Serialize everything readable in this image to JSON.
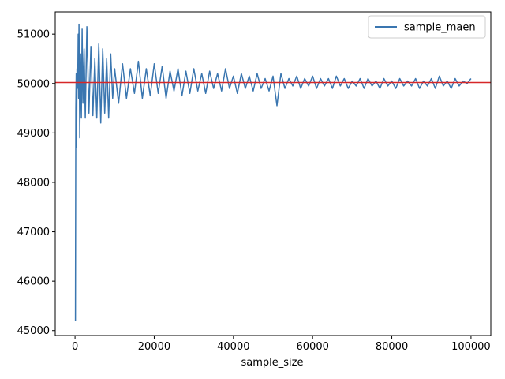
{
  "chart_data": {
    "type": "line",
    "title": "",
    "xlabel": "sample_size",
    "ylabel": "",
    "xlim": [
      -5000,
      105000
    ],
    "ylim": [
      44900,
      51450
    ],
    "xticks": [
      0,
      20000,
      40000,
      60000,
      80000,
      100000
    ],
    "xtick_labels": [
      "0",
      "20000",
      "40000",
      "60000",
      "80000",
      "100000"
    ],
    "yticks": [
      45000,
      46000,
      47000,
      48000,
      49000,
      50000,
      51000
    ],
    "ytick_labels": [
      "45000",
      "46000",
      "47000",
      "48000",
      "49000",
      "50000",
      "51000"
    ],
    "grid": false,
    "legend": {
      "location": "upper right",
      "entries": [
        "sample_maen"
      ]
    },
    "series": [
      {
        "name": "sample_maen",
        "color": "#3a76b0",
        "x": [
          100,
          200,
          300,
          400,
          500,
          600,
          700,
          800,
          900,
          1000,
          1200,
          1400,
          1600,
          1800,
          2000,
          2300,
          2600,
          3000,
          3500,
          4000,
          4500,
          5000,
          5500,
          6000,
          6500,
          7000,
          7500,
          8000,
          8500,
          9000,
          9500,
          10000,
          11000,
          12000,
          13000,
          14000,
          15000,
          16000,
          17000,
          18000,
          19000,
          20000,
          21000,
          22000,
          23000,
          24000,
          25000,
          26000,
          27000,
          28000,
          29000,
          30000,
          31000,
          32000,
          33000,
          34000,
          35000,
          36000,
          37000,
          38000,
          39000,
          40000,
          41000,
          42000,
          43000,
          44000,
          45000,
          46000,
          47000,
          48000,
          49000,
          50000,
          51000,
          52000,
          53000,
          54000,
          55000,
          56000,
          57000,
          58000,
          59000,
          60000,
          61000,
          62000,
          63000,
          64000,
          65000,
          66000,
          67000,
          68000,
          69000,
          70000,
          71000,
          72000,
          73000,
          74000,
          75000,
          76000,
          77000,
          78000,
          79000,
          80000,
          81000,
          82000,
          83000,
          84000,
          85000,
          86000,
          87000,
          88000,
          89000,
          90000,
          91000,
          92000,
          93000,
          94000,
          95000,
          96000,
          97000,
          98000,
          99000,
          100000
        ],
        "y": [
          45200,
          49500,
          50200,
          48700,
          50300,
          49900,
          50100,
          51000,
          49700,
          51200,
          48900,
          50600,
          49300,
          51100,
          49600,
          50700,
          49300,
          51150,
          49400,
          50750,
          49350,
          50500,
          49300,
          50800,
          49200,
          50700,
          49400,
          50500,
          49300,
          50600,
          49700,
          50300,
          49600,
          50400,
          49700,
          50300,
          49800,
          50450,
          49700,
          50300,
          49750,
          50400,
          49800,
          50350,
          49700,
          50250,
          49850,
          50300,
          49750,
          50250,
          49800,
          50300,
          49850,
          50200,
          49800,
          50250,
          49900,
          50200,
          49850,
          50300,
          49900,
          50150,
          49800,
          50200,
          49900,
          50150,
          49850,
          50200,
          49900,
          50100,
          49850,
          50150,
          49550,
          50200,
          49900,
          50100,
          49950,
          50150,
          49900,
          50100,
          49950,
          50150,
          49900,
          50100,
          49950,
          50100,
          49900,
          50150,
          49950,
          50100,
          49900,
          50050,
          49950,
          50100,
          49900,
          50100,
          49950,
          50050,
          49900,
          50100,
          49950,
          50050,
          49900,
          50100,
          49950,
          50050,
          49950,
          50100,
          49900,
          50050,
          49950,
          50100,
          49900,
          50150,
          49950,
          50050,
          49900,
          50100,
          49950,
          50050,
          50000,
          50100
        ]
      }
    ],
    "reference_line": {
      "axis": "y",
      "value": 50020,
      "color": "#d62728"
    }
  }
}
